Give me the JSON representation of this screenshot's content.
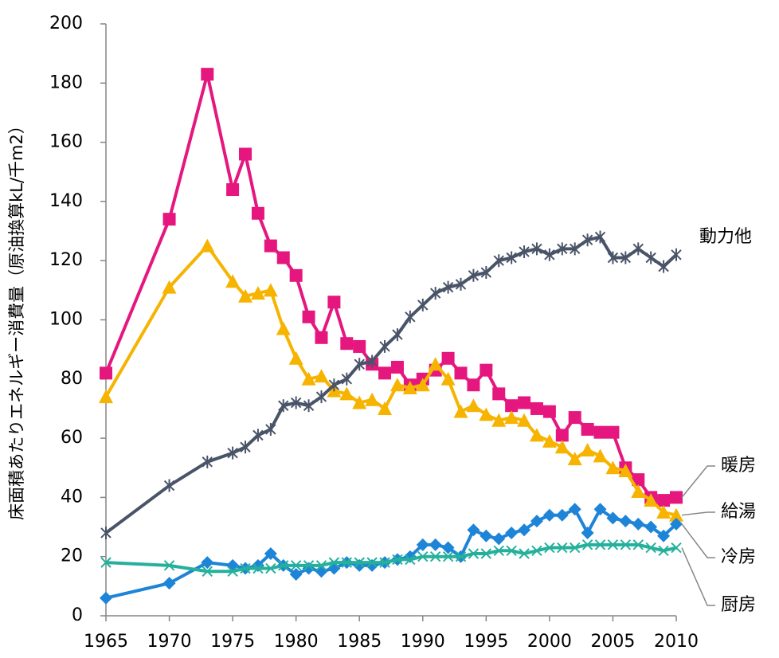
{
  "chart_data": {
    "type": "line",
    "y_label": "床面積あたりエネルギー消費量（原油換算kL/千m2）",
    "x": [
      1965,
      1970,
      1973,
      1975,
      1976,
      1977,
      1978,
      1979,
      1980,
      1981,
      1982,
      1983,
      1984,
      1985,
      1986,
      1987,
      1988,
      1989,
      1990,
      1991,
      1992,
      1993,
      1994,
      1995,
      1996,
      1997,
      1998,
      1999,
      2000,
      2001,
      2002,
      2003,
      2004,
      2005,
      2006,
      2007,
      2008,
      2009,
      2010
    ],
    "series": [
      {
        "name": "暖房",
        "color": "#e5177f",
        "marker": "square",
        "values": [
          82,
          134,
          183,
          144,
          156,
          136,
          125,
          121,
          115,
          101,
          94,
          106,
          92,
          91,
          85,
          82,
          84,
          78,
          80,
          83,
          87,
          82,
          78,
          83,
          75,
          71,
          72,
          70,
          69,
          61,
          67,
          63,
          62,
          62,
          50,
          46,
          40,
          39,
          40
        ]
      },
      {
        "name": "給湯",
        "color": "#f6b400",
        "marker": "triangle",
        "values": [
          74,
          111,
          125,
          113,
          108,
          109,
          110,
          97,
          87,
          80,
          81,
          76,
          75,
          72,
          73,
          70,
          78,
          77,
          78,
          85,
          80,
          69,
          71,
          68,
          66,
          67,
          66,
          61,
          59,
          57,
          53,
          56,
          54,
          50,
          49,
          42,
          39,
          35,
          34
        ]
      },
      {
        "name": "動力他",
        "color": "#4a5468",
        "marker": "star",
        "values": [
          28,
          44,
          52,
          55,
          57,
          61,
          63,
          71,
          72,
          71,
          74,
          78,
          80,
          85,
          86,
          91,
          95,
          101,
          105,
          109,
          111,
          112,
          115,
          116,
          120,
          121,
          123,
          124,
          122,
          124,
          124,
          127,
          128,
          121,
          121,
          124,
          121,
          118,
          122
        ]
      },
      {
        "name": "冷房",
        "color": "#1e84d8",
        "marker": "diamond",
        "values": [
          6,
          11,
          18,
          17,
          16,
          17,
          21,
          17,
          14,
          16,
          15,
          16,
          18,
          17,
          17,
          18,
          19,
          20,
          24,
          24,
          23,
          20,
          29,
          27,
          26,
          28,
          29,
          32,
          34,
          34,
          36,
          28,
          36,
          33,
          32,
          31,
          30,
          27,
          31
        ]
      },
      {
        "name": "厨房",
        "color": "#25b09c",
        "marker": "x",
        "values": [
          18,
          17,
          15,
          15,
          16,
          16,
          16,
          17,
          17,
          17,
          17,
          18,
          18,
          18,
          18,
          18,
          19,
          19,
          20,
          20,
          20,
          20,
          21,
          21,
          22,
          22,
          21,
          22,
          23,
          23,
          23,
          24,
          24,
          24,
          24,
          24,
          23,
          22,
          23
        ]
      }
    ],
    "xlim": [
      1965,
      2010
    ],
    "xticks": [
      1965,
      1970,
      1975,
      1980,
      1985,
      1990,
      1995,
      2000,
      2005,
      2010
    ],
    "ylim": [
      0,
      200
    ],
    "yticks": [
      0,
      20,
      40,
      60,
      80,
      100,
      120,
      140,
      160,
      180,
      200
    ],
    "grid": false
  }
}
